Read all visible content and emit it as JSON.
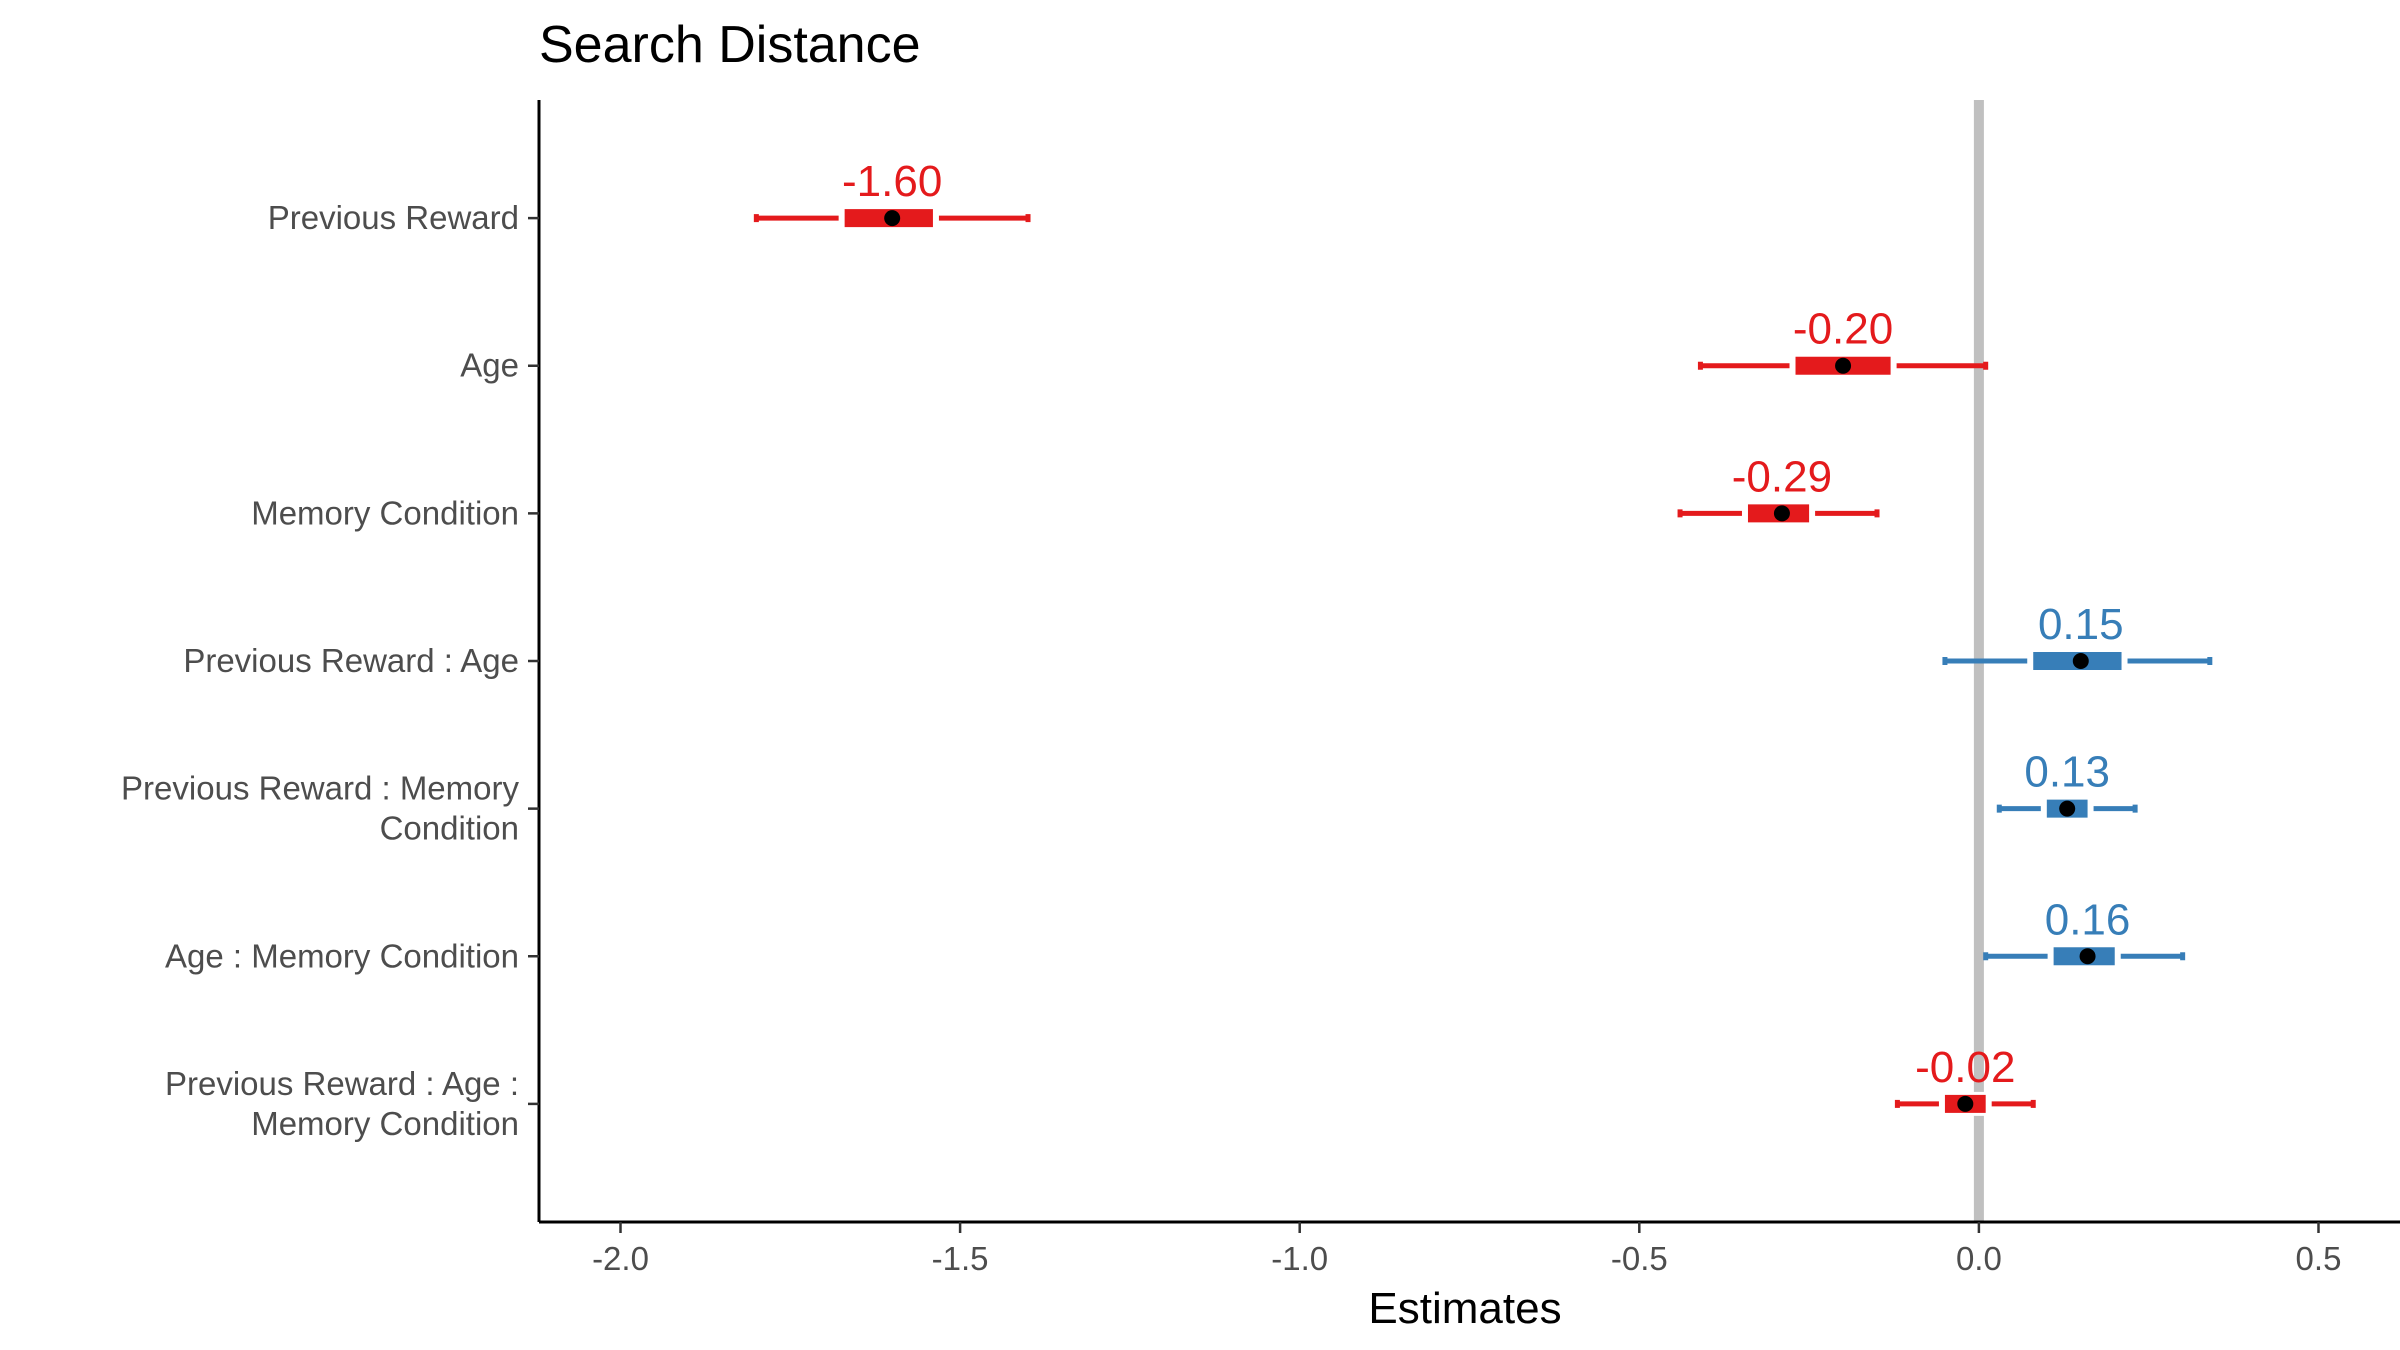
{
  "chart_data": {
    "type": "forest",
    "title": "Search Distance",
    "xlabel": "Estimates",
    "ylabel": "",
    "xlim": [
      -2.12,
      0.62
    ],
    "x_ticks": [
      -2.0,
      -1.5,
      -1.0,
      -0.5,
      0.0,
      0.5
    ],
    "x_tick_labels": [
      "-2.0",
      "-1.5",
      "-1.0",
      "-0.5",
      "0.0",
      "0.5"
    ],
    "reference_line": 0.0,
    "grid": false,
    "colors": {
      "negative": "#e41a1c",
      "positive": "#377eb8",
      "point": "#000000",
      "reference": "#c0c0c0",
      "axis": "#000000"
    },
    "terms": [
      {
        "label": "Previous Reward",
        "estimate": -1.6,
        "estimate_label": "-1.60",
        "ci95": [
          -1.8,
          -1.4
        ],
        "ci50": [
          -1.67,
          -1.54
        ]
      },
      {
        "label": "Age",
        "estimate": -0.2,
        "estimate_label": "-0.20",
        "ci95": [
          -0.41,
          0.01
        ],
        "ci50": [
          -0.27,
          -0.13
        ]
      },
      {
        "label": "Memory Condition",
        "estimate": -0.29,
        "estimate_label": "-0.29",
        "ci95": [
          -0.44,
          -0.15
        ],
        "ci50": [
          -0.34,
          -0.25
        ]
      },
      {
        "label": "Previous Reward : Age",
        "estimate": 0.15,
        "estimate_label": "0.15",
        "ci95": [
          -0.05,
          0.34
        ],
        "ci50": [
          0.08,
          0.21
        ]
      },
      {
        "label": "Previous Reward : Memory Condition",
        "estimate": 0.13,
        "estimate_label": "0.13",
        "ci95": [
          0.03,
          0.23
        ],
        "ci50": [
          0.1,
          0.16
        ]
      },
      {
        "label": "Age : Memory Condition",
        "estimate": 0.16,
        "estimate_label": "0.16",
        "ci95": [
          0.01,
          0.3
        ],
        "ci50": [
          0.11,
          0.2
        ]
      },
      {
        "label": "Previous Reward : Age : Memory Condition",
        "estimate": -0.02,
        "estimate_label": "-0.02",
        "ci95": [
          -0.12,
          0.08
        ],
        "ci50": [
          -0.05,
          0.01
        ]
      }
    ]
  }
}
